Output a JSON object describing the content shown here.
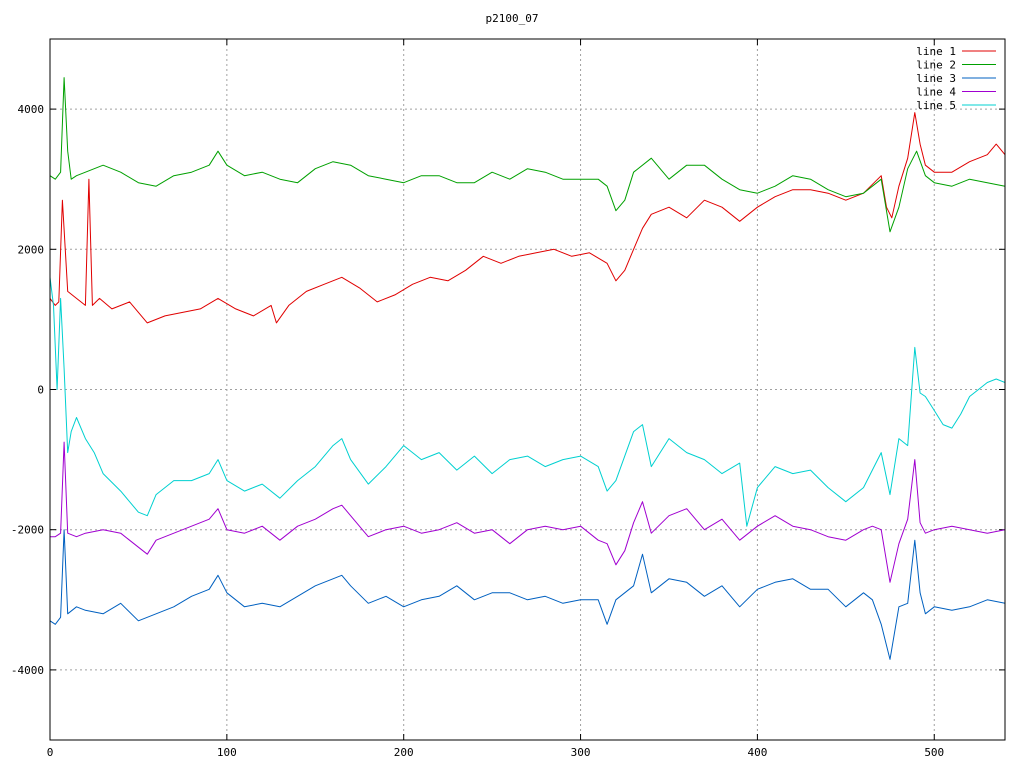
{
  "chart_data": {
    "type": "line",
    "title": "p2100_07",
    "xlabel": "",
    "ylabel": "",
    "xlim": [
      0,
      540
    ],
    "ylim": [
      -5000,
      5000
    ],
    "xticks": [
      0,
      100,
      200,
      300,
      400,
      500
    ],
    "yticks": [
      -4000,
      -2000,
      0,
      2000,
      4000
    ],
    "grid": true,
    "legend_position": "top-right",
    "series": [
      {
        "name": "line 1",
        "color": "#e00000",
        "x": [
          0,
          3,
          5,
          7,
          10,
          15,
          20,
          22,
          24,
          28,
          35,
          45,
          55,
          65,
          75,
          85,
          95,
          105,
          115,
          125,
          128,
          135,
          145,
          155,
          165,
          175,
          185,
          195,
          205,
          215,
          225,
          235,
          245,
          255,
          265,
          275,
          285,
          295,
          305,
          315,
          320,
          325,
          330,
          335,
          340,
          350,
          360,
          370,
          380,
          390,
          400,
          410,
          420,
          430,
          440,
          450,
          460,
          470,
          473,
          476,
          480,
          485,
          489,
          492,
          495,
          500,
          510,
          520,
          530,
          535,
          540
        ],
        "y": [
          1300,
          1200,
          1250,
          2700,
          1400,
          1300,
          1200,
          3000,
          1200,
          1300,
          1150,
          1250,
          950,
          1050,
          1100,
          1150,
          1300,
          1150,
          1050,
          1200,
          950,
          1200,
          1400,
          1500,
          1600,
          1450,
          1250,
          1350,
          1500,
          1600,
          1550,
          1700,
          1900,
          1800,
          1900,
          1950,
          2000,
          1900,
          1950,
          1800,
          1550,
          1700,
          2000,
          2300,
          2500,
          2600,
          2450,
          2700,
          2600,
          2400,
          2600,
          2750,
          2850,
          2850,
          2800,
          2700,
          2800,
          3050,
          2600,
          2450,
          2900,
          3300,
          3950,
          3500,
          3200,
          3100,
          3100,
          3250,
          3350,
          3500,
          3350
        ]
      },
      {
        "name": "line 2",
        "color": "#00a000",
        "x": [
          0,
          3,
          6,
          8,
          10,
          12,
          15,
          20,
          30,
          40,
          50,
          60,
          70,
          80,
          90,
          95,
          100,
          110,
          120,
          130,
          140,
          150,
          160,
          170,
          180,
          190,
          200,
          210,
          220,
          230,
          240,
          250,
          260,
          270,
          280,
          290,
          300,
          310,
          315,
          320,
          325,
          330,
          340,
          350,
          360,
          370,
          380,
          390,
          400,
          410,
          420,
          430,
          440,
          450,
          460,
          470,
          475,
          480,
          485,
          490,
          495,
          500,
          510,
          520,
          530,
          540
        ],
        "y": [
          3050,
          3000,
          3100,
          4450,
          3400,
          3000,
          3050,
          3100,
          3200,
          3100,
          2950,
          2900,
          3050,
          3100,
          3200,
          3400,
          3200,
          3050,
          3100,
          3000,
          2950,
          3150,
          3250,
          3200,
          3050,
          3000,
          2950,
          3050,
          3050,
          2950,
          2950,
          3100,
          3000,
          3150,
          3100,
          3000,
          3000,
          3000,
          2900,
          2550,
          2700,
          3100,
          3300,
          3000,
          3200,
          3200,
          3000,
          2850,
          2800,
          2900,
          3050,
          3000,
          2850,
          2750,
          2800,
          3000,
          2250,
          2600,
          3150,
          3400,
          3050,
          2950,
          2900,
          3000,
          2950,
          2900
        ]
      },
      {
        "name": "line 3",
        "color": "#0060c0",
        "x": [
          0,
          3,
          6,
          8,
          10,
          15,
          20,
          30,
          40,
          50,
          60,
          70,
          80,
          90,
          95,
          100,
          110,
          120,
          130,
          140,
          150,
          160,
          165,
          170,
          180,
          190,
          200,
          210,
          220,
          230,
          240,
          250,
          260,
          270,
          280,
          290,
          300,
          310,
          315,
          320,
          330,
          335,
          340,
          350,
          360,
          370,
          380,
          390,
          400,
          410,
          420,
          430,
          440,
          450,
          460,
          465,
          470,
          475,
          480,
          485,
          489,
          492,
          495,
          500,
          510,
          520,
          530,
          540
        ],
        "y": [
          -3300,
          -3350,
          -3250,
          -2000,
          -3200,
          -3100,
          -3150,
          -3200,
          -3050,
          -3300,
          -3200,
          -3100,
          -2950,
          -2850,
          -2650,
          -2900,
          -3100,
          -3050,
          -3100,
          -2950,
          -2800,
          -2700,
          -2650,
          -2800,
          -3050,
          -2950,
          -3100,
          -3000,
          -2950,
          -2800,
          -3000,
          -2900,
          -2900,
          -3000,
          -2950,
          -3050,
          -3000,
          -3000,
          -3350,
          -3000,
          -2800,
          -2350,
          -2900,
          -2700,
          -2750,
          -2950,
          -2800,
          -3100,
          -2850,
          -2750,
          -2700,
          -2850,
          -2850,
          -3100,
          -2900,
          -3000,
          -3350,
          -3850,
          -3100,
          -3050,
          -2150,
          -2900,
          -3200,
          -3100,
          -3150,
          -3100,
          -3000,
          -3050
        ]
      },
      {
        "name": "line 4",
        "color": "#a000d0",
        "x": [
          0,
          3,
          6,
          8,
          10,
          15,
          20,
          30,
          40,
          50,
          55,
          60,
          70,
          80,
          90,
          95,
          100,
          110,
          120,
          130,
          140,
          150,
          160,
          165,
          170,
          180,
          190,
          200,
          210,
          220,
          230,
          240,
          250,
          260,
          270,
          280,
          290,
          300,
          310,
          315,
          320,
          325,
          330,
          335,
          340,
          350,
          360,
          370,
          380,
          390,
          400,
          410,
          420,
          430,
          440,
          450,
          460,
          465,
          470,
          475,
          480,
          485,
          489,
          492,
          495,
          500,
          510,
          520,
          530,
          540
        ],
        "y": [
          -2100,
          -2100,
          -2050,
          -750,
          -2050,
          -2100,
          -2050,
          -2000,
          -2050,
          -2250,
          -2350,
          -2150,
          -2050,
          -1950,
          -1850,
          -1700,
          -2000,
          -2050,
          -1950,
          -2150,
          -1950,
          -1850,
          -1700,
          -1650,
          -1800,
          -2100,
          -2000,
          -1950,
          -2050,
          -2000,
          -1900,
          -2050,
          -2000,
          -2200,
          -2000,
          -1950,
          -2000,
          -1950,
          -2150,
          -2200,
          -2500,
          -2300,
          -1900,
          -1600,
          -2050,
          -1800,
          -1700,
          -2000,
          -1850,
          -2150,
          -1950,
          -1800,
          -1950,
          -2000,
          -2100,
          -2150,
          -2000,
          -1950,
          -2000,
          -2750,
          -2200,
          -1850,
          -1000,
          -1900,
          -2050,
          -2000,
          -1950,
          -2000,
          -2050,
          -2000
        ]
      },
      {
        "name": "line 5",
        "color": "#00d0d0",
        "x": [
          0,
          2,
          4,
          6,
          8,
          10,
          12,
          15,
          20,
          25,
          30,
          40,
          50,
          55,
          60,
          70,
          80,
          90,
          95,
          100,
          110,
          120,
          130,
          140,
          150,
          160,
          165,
          170,
          180,
          190,
          200,
          210,
          220,
          230,
          240,
          250,
          260,
          270,
          280,
          290,
          300,
          310,
          315,
          320,
          330,
          335,
          340,
          350,
          360,
          370,
          380,
          390,
          394,
          400,
          410,
          420,
          430,
          440,
          450,
          460,
          470,
          475,
          480,
          485,
          489,
          492,
          495,
          500,
          505,
          510,
          515,
          520,
          525,
          530,
          535,
          540
        ],
        "y": [
          1600,
          1200,
          0,
          1300,
          300,
          -900,
          -600,
          -400,
          -700,
          -900,
          -1200,
          -1450,
          -1750,
          -1800,
          -1500,
          -1300,
          -1300,
          -1200,
          -1000,
          -1300,
          -1450,
          -1350,
          -1550,
          -1300,
          -1100,
          -800,
          -700,
          -1000,
          -1350,
          -1100,
          -800,
          -1000,
          -900,
          -1150,
          -950,
          -1200,
          -1000,
          -950,
          -1100,
          -1000,
          -950,
          -1100,
          -1450,
          -1300,
          -600,
          -500,
          -1100,
          -700,
          -900,
          -1000,
          -1200,
          -1050,
          -1950,
          -1400,
          -1100,
          -1200,
          -1150,
          -1400,
          -1600,
          -1400,
          -900,
          -1500,
          -700,
          -800,
          600,
          -50,
          -100,
          -300,
          -500,
          -550,
          -350,
          -100,
          0,
          100,
          150,
          100
        ]
      }
    ]
  }
}
